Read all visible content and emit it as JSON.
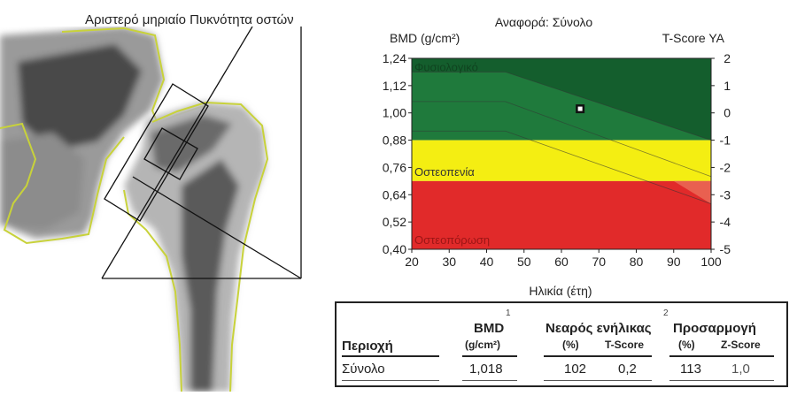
{
  "scan": {
    "title": "Αριστερό μηριαίο Πυκνότητα οστών"
  },
  "chart_data": {
    "type": "area",
    "reference_label": "Αναφορά: Σύνολο",
    "ylabel_left": "BMD (g/cm²)",
    "ylabel_right": "T-Score YA",
    "xlabel": "Ηλικία (έτη)",
    "xlim": [
      20,
      100
    ],
    "ylim": [
      0.4,
      1.24
    ],
    "x_ticks": [
      20,
      30,
      40,
      50,
      60,
      70,
      80,
      90,
      100
    ],
    "y_ticks": [
      "1,24",
      "1,12",
      "1,00",
      "0,88",
      "0,76",
      "0,64",
      "0,52",
      "0,40"
    ],
    "y_tick_values": [
      1.24,
      1.12,
      1.0,
      0.88,
      0.76,
      0.64,
      0.52,
      0.4
    ],
    "t_ticks": [
      "2",
      "1",
      "0",
      "-1",
      "-2",
      "-3",
      "-4",
      "-5"
    ],
    "t_tick_values": [
      2,
      1,
      0,
      -1,
      -2,
      -3,
      -4,
      -5
    ],
    "bands": [
      {
        "name": "Φυσιολογικό",
        "from": 0.88,
        "to": 1.24,
        "color": "#1f7a3c"
      },
      {
        "name": "Οστεοπενία",
        "from": 0.7,
        "to": 0.88,
        "color": "#f4ee12"
      },
      {
        "name": "Οστεοπόρωση",
        "from": 0.4,
        "to": 0.7,
        "color": "#e12a2a"
      }
    ],
    "reference_curves": [
      {
        "name": "upper",
        "x": [
          20,
          45,
          100
        ],
        "y": [
          1.18,
          1.18,
          0.88
        ]
      },
      {
        "name": "middle",
        "x": [
          20,
          45,
          100
        ],
        "y": [
          1.05,
          1.05,
          0.72
        ]
      },
      {
        "name": "lower",
        "x": [
          20,
          45,
          100
        ],
        "y": [
          0.92,
          0.92,
          0.6
        ]
      }
    ],
    "patient_point": {
      "x": 65,
      "y": 1.018
    }
  },
  "results_table": {
    "col_region": "Περιοχή",
    "bmd_label": "BMD",
    "bmd_sup": "1",
    "bmd_unit": "(g/cm²)",
    "young_label": "Νεαρός ενήλικας",
    "young_sup": "2",
    "young_pct": "(%)",
    "young_t": "T-Score",
    "age_label": "Προσαρμογή",
    "age_pct": "(%)",
    "age_z": "Z-Score",
    "row": {
      "region": "Σύνολο",
      "bmd": "1,018",
      "young_pct": "102",
      "t_score": "0,2",
      "age_pct": "113",
      "z_score": "1,0"
    }
  }
}
